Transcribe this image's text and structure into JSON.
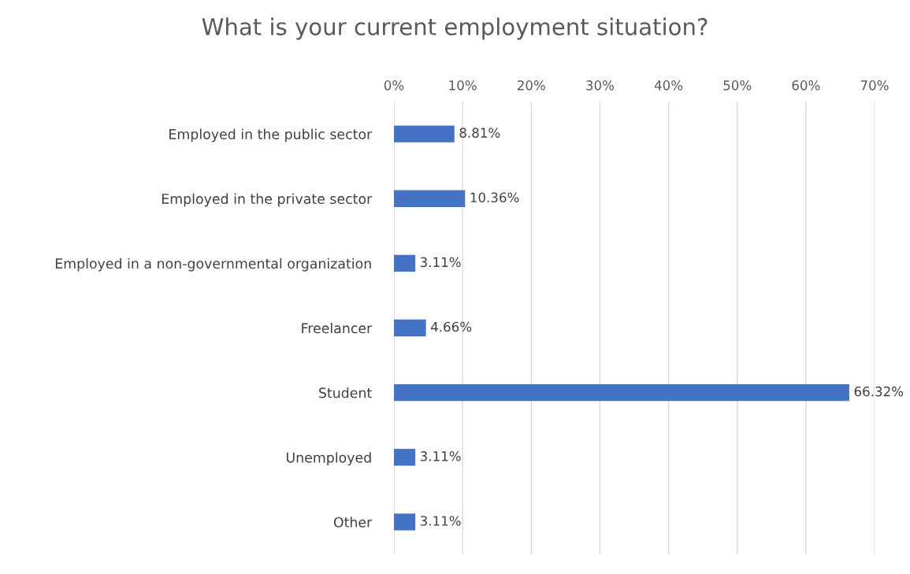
{
  "chart_data": {
    "type": "bar",
    "orientation": "horizontal",
    "title": "What is your current employment situation?",
    "categories": [
      "Employed in the public sector",
      "Employed in the private sector",
      "Employed in a non-governmental organization",
      "Freelancer",
      "Student",
      "Unemployed",
      "Other"
    ],
    "values": [
      8.81,
      10.36,
      3.11,
      4.66,
      66.32,
      3.11,
      3.11
    ],
    "value_labels": [
      "8.81%",
      "10.36%",
      "3.11%",
      "4.66%",
      "66.32%",
      "3.11%",
      "3.11%"
    ],
    "color": "#4472c4",
    "xlim": [
      0,
      70
    ],
    "xticks": [
      {
        "value": 0,
        "label": "0%"
      },
      {
        "value": 10,
        "label": "10%"
      },
      {
        "value": 20,
        "label": "20%"
      },
      {
        "value": 30,
        "label": "30%"
      },
      {
        "value": 40,
        "label": "40%"
      },
      {
        "value": 50,
        "label": "50%"
      },
      {
        "value": 60,
        "label": "60%"
      },
      {
        "value": 70,
        "label": "70%"
      }
    ],
    "grid": "x",
    "legend": false
  }
}
